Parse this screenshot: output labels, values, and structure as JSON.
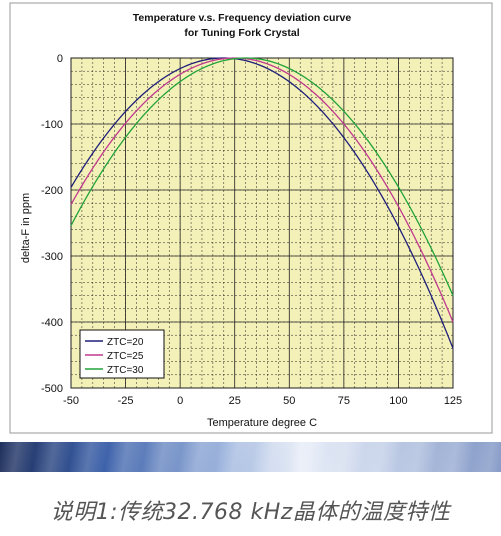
{
  "chart_data": {
    "type": "line",
    "title": "Temperature v.s. Frequency deviation curve",
    "subtitle": "for Tuning Fork Crystal",
    "xlabel": "Temperature degree C",
    "ylabel": "delta-F in ppm",
    "xlim": [
      -50,
      125
    ],
    "ylim": [
      -500,
      0
    ],
    "xticks": [
      "-50",
      "-25",
      "0",
      "25",
      "50",
      "75",
      "100",
      "125"
    ],
    "yticks": [
      "0",
      "-100",
      "-200",
      "-300",
      "-400",
      "-500"
    ],
    "grid": true,
    "legend_position": "bottom-left",
    "plot_background": "#f4f1b8",
    "grid_color": "#222222",
    "series": [
      {
        "name": "ZTC=20",
        "color": "#1f1f7a",
        "x": [
          -50,
          -25,
          0,
          20,
          50,
          75,
          100,
          125
        ],
        "y": [
          -196,
          -85,
          -20,
          0,
          -40,
          -124,
          -258,
          -440
        ]
      },
      {
        "name": "ZTC=25",
        "color": "#c0398f",
        "x": [
          -50,
          -25,
          0,
          25,
          50,
          75,
          100,
          125
        ],
        "y": [
          -222,
          -101,
          -22,
          0,
          -22,
          -101,
          -228,
          -400
        ]
      },
      {
        "name": "ZTC=30",
        "color": "#22a33a",
        "x": [
          -50,
          -25,
          0,
          30,
          50,
          75,
          100,
          125
        ],
        "y": [
          -254,
          -126,
          -39,
          0,
          -21,
          -84,
          -190,
          -360
        ]
      }
    ]
  },
  "caption": "说明1:传统32.768 kHz晶体的温度特性"
}
